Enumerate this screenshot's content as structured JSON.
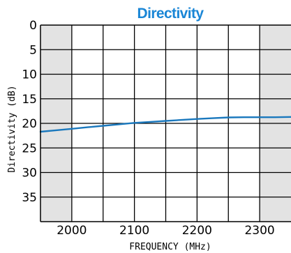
{
  "chart_data": {
    "type": "line",
    "title": "Directivity",
    "xlabel": "FREQUENCY (MHz)",
    "ylabel": "Directivity (dB)",
    "xlim": [
      1950,
      2350
    ],
    "ylim": [
      0,
      40
    ],
    "y_inverted": true,
    "grid": true,
    "x_ticks": [
      2000,
      2100,
      2200,
      2300
    ],
    "y_ticks": [
      0,
      5,
      10,
      15,
      20,
      25,
      30,
      35
    ],
    "shaded_bands": [
      [
        1950,
        2000
      ],
      [
        2300,
        2350
      ]
    ],
    "series": [
      {
        "x": [
          1950,
          1975,
          2000,
          2025,
          2050,
          2075,
          2100,
          2125,
          2150,
          2175,
          2200,
          2225,
          2250,
          2275,
          2300,
          2325,
          2350
        ],
        "values": [
          21.7,
          21.4,
          21.1,
          20.8,
          20.5,
          20.2,
          19.9,
          19.7,
          19.5,
          19.3,
          19.1,
          18.95,
          18.8,
          18.75,
          18.75,
          18.75,
          18.7
        ]
      }
    ]
  },
  "colors": {
    "title": "#1a86d6",
    "line": "#1a78bd",
    "shade": "#e3e3e3",
    "grid": "#000000"
  }
}
